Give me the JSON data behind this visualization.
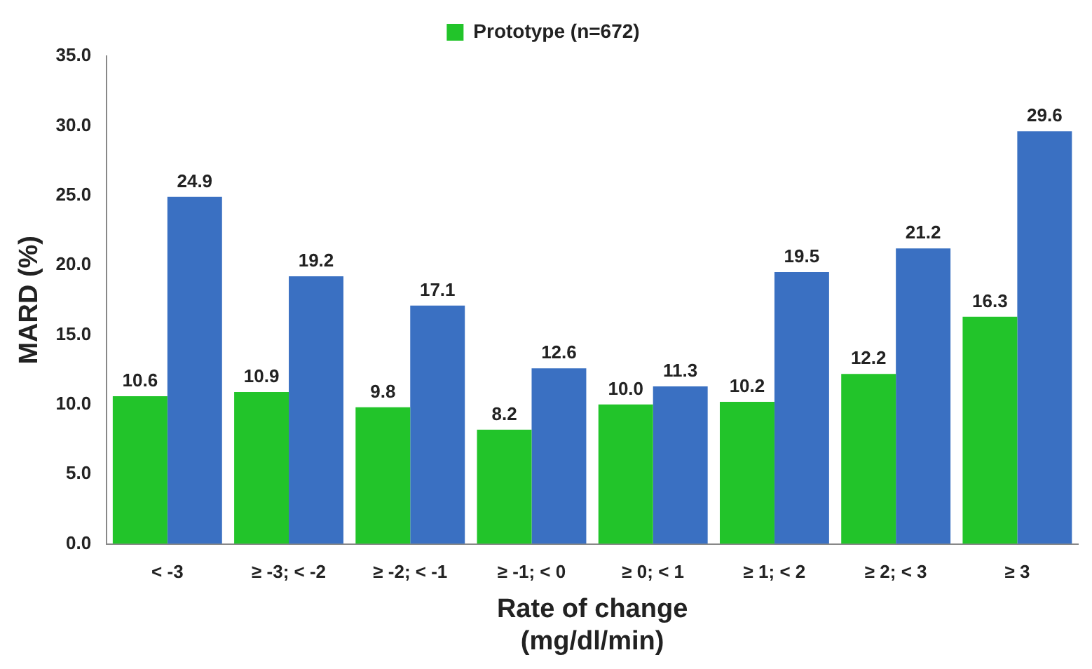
{
  "chart_data": {
    "type": "bar",
    "xlabel": "Rate of change\n(mg/dl/min)",
    "ylabel": "MARD (%)",
    "categories": [
      "< -3",
      "≥ -3; < -2",
      "≥ -2; < -1",
      "≥ -1; < 0",
      "≥ 0; < 1",
      "≥ 1; < 2",
      "≥ 2; < 3",
      "≥ 3"
    ],
    "series": [
      {
        "name": "Prototype (n=672)",
        "color": "#22c42a",
        "values": [
          10.6,
          10.9,
          9.8,
          8.2,
          10.0,
          10.2,
          12.2,
          16.3
        ],
        "value_labels": [
          "10.6",
          "10.9",
          "9.8",
          "8.2",
          "10.0",
          "10.2",
          "12.2",
          "16.3"
        ]
      },
      {
        "color": "#3a70c2",
        "values": [
          24.9,
          19.2,
          17.1,
          12.6,
          11.3,
          19.5,
          21.2,
          29.6
        ],
        "value_labels": [
          "24.9",
          "19.2",
          "17.1",
          "12.6",
          "11.3",
          "19.5",
          "21.2",
          "29.6"
        ]
      }
    ],
    "ylim": [
      0,
      35
    ],
    "yticks": [
      {
        "value": 0,
        "label": "0.0"
      },
      {
        "value": 5,
        "label": "5.0"
      },
      {
        "value": 10,
        "label": "10.0"
      },
      {
        "value": 15,
        "label": "15.0"
      },
      {
        "value": 20,
        "label": "20.0"
      },
      {
        "value": 25,
        "label": "25.0"
      },
      {
        "value": 30,
        "label": "30.0"
      },
      {
        "value": 35,
        "label": "35.0"
      }
    ],
    "grid": false,
    "legend": "top"
  }
}
